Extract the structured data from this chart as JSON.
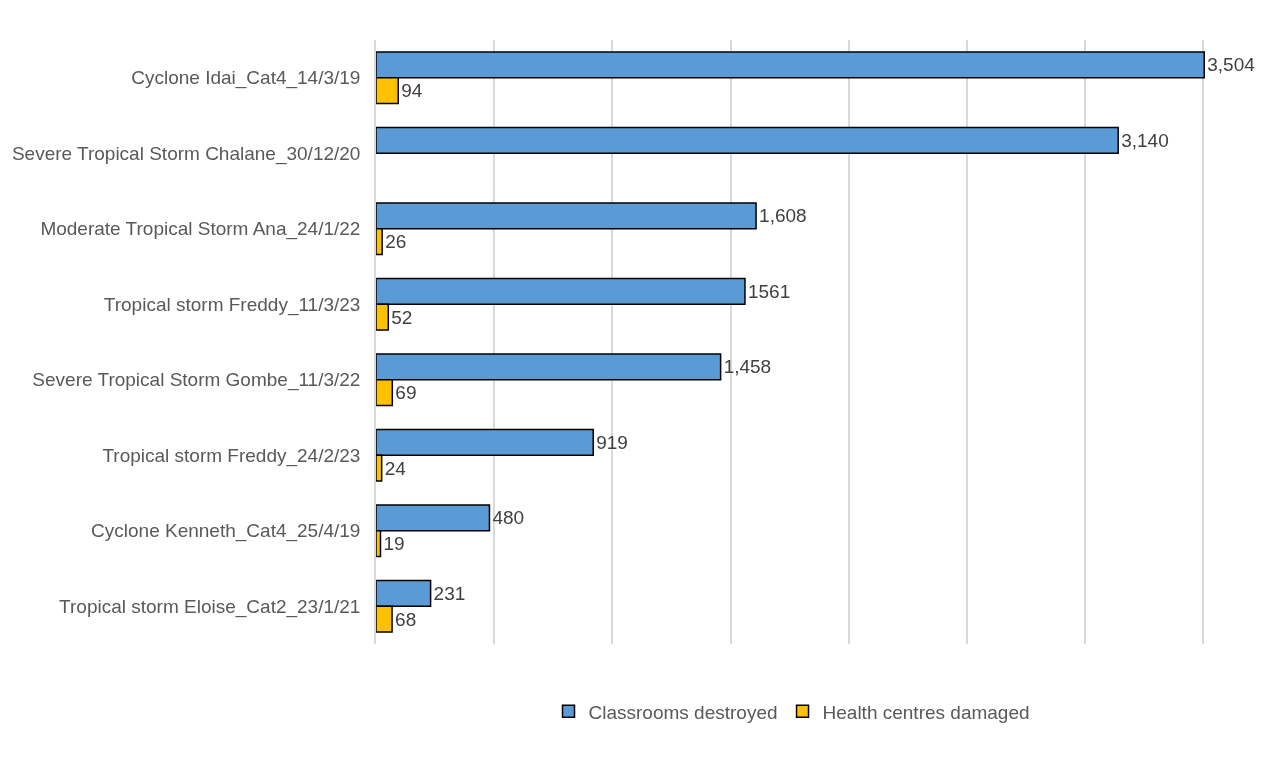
{
  "chart_data": {
    "type": "bar",
    "orientation": "horizontal",
    "categories": [
      "Cyclone Idai_Cat4_14/3/19",
      "Severe Tropical Storm Chalane_30/12/20",
      "Moderate Tropical Storm Ana_24/1/22",
      "Tropical storm Freddy_11/3/23",
      "Severe Tropical Storm Gombe_11/3/22",
      "Tropical storm Freddy_24/2/23",
      "Cyclone Kenneth_Cat4_25/4/19",
      "Tropical storm Eloise_Cat2_23/1/21"
    ],
    "series": [
      {
        "name": "Classrooms destroyed",
        "color": "#5b9bd5",
        "values": [
          3504,
          3140,
          1608,
          1561,
          1458,
          919,
          480,
          231
        ],
        "value_labels": [
          "3,504",
          "3,140",
          "1,608",
          "1561",
          "1,458",
          "919",
          "480",
          "231"
        ]
      },
      {
        "name": "Health centres damaged",
        "color": "#ffc000",
        "values": [
          94,
          null,
          26,
          52,
          69,
          24,
          19,
          68
        ],
        "value_labels": [
          "94",
          null,
          "26",
          "52",
          "69",
          "24",
          "19",
          "68"
        ]
      }
    ],
    "xlim": [
      0,
      3520
    ],
    "xticks": [
      {
        "value": 500,
        "label": null
      },
      {
        "value": 1000,
        "label": null
      },
      {
        "value": 1500,
        "label": null
      },
      {
        "value": 2000,
        "label": null
      },
      {
        "value": 2500,
        "label": null
      },
      {
        "value": 3000,
        "label": null
      },
      {
        "value": 3500,
        "label": null
      }
    ],
    "tick_labels": "y",
    "grid": "x",
    "legend": "bottom"
  }
}
